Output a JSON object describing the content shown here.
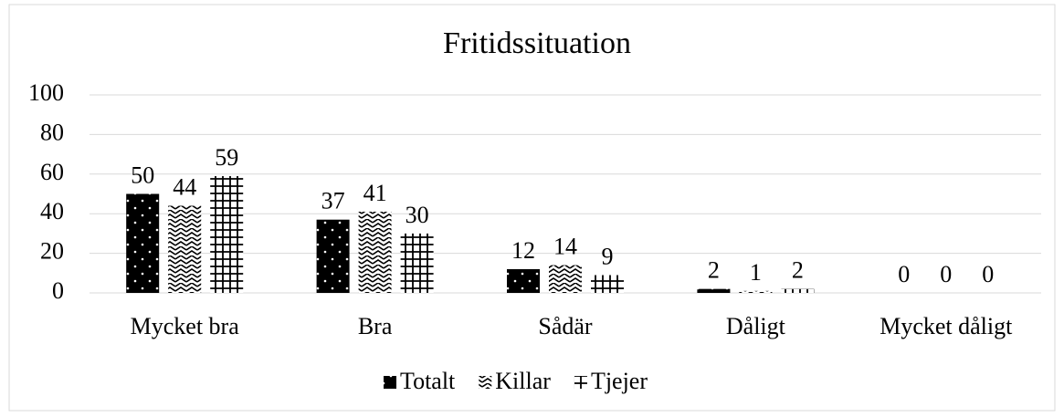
{
  "chart_data": {
    "type": "bar",
    "title": "Fritidssituation",
    "categories": [
      "Mycket bra",
      "Bra",
      "Sådär",
      "Dåligt",
      "Mycket dåligt"
    ],
    "series": [
      {
        "name": "Totalt",
        "values": [
          50,
          37,
          12,
          2,
          0
        ]
      },
      {
        "name": "Killar",
        "values": [
          44,
          41,
          14,
          1,
          0
        ]
      },
      {
        "name": "Tjejer",
        "values": [
          59,
          30,
          9,
          2,
          0
        ]
      }
    ],
    "ylim": [
      0,
      100
    ],
    "yticks": [
      0,
      20,
      40,
      60,
      80,
      100
    ],
    "grid": true,
    "legend": "bottom"
  }
}
